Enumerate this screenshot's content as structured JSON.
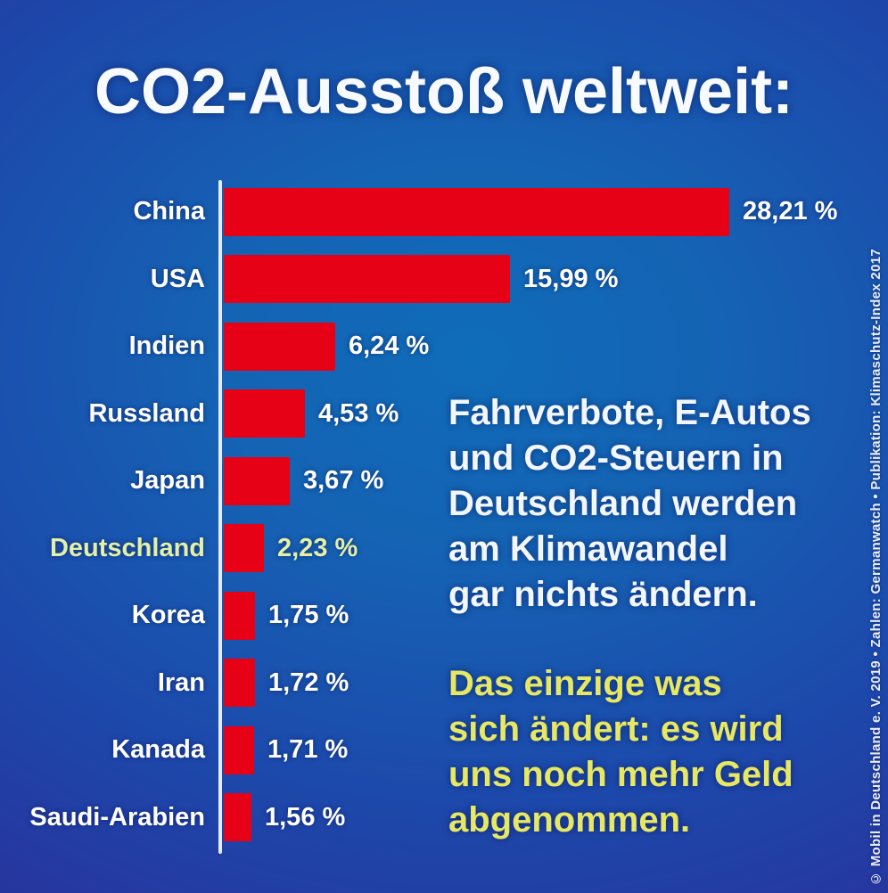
{
  "title": "CO2-Ausstoß weltweit:",
  "chart_data": {
    "type": "bar",
    "orientation": "horizontal",
    "title": "CO2-Ausstoß weltweit:",
    "categories": [
      "China",
      "USA",
      "Indien",
      "Russland",
      "Japan",
      "Deutschland",
      "Korea",
      "Iran",
      "Kanada",
      "Saudi-Arabien"
    ],
    "values": [
      28.21,
      15.99,
      6.24,
      4.53,
      3.67,
      2.23,
      1.75,
      1.72,
      1.71,
      1.56
    ],
    "value_labels": [
      "28,21 %",
      "15,99 %",
      "6,24 %",
      "4,53 %",
      "3,67 %",
      "2,23 %",
      "1,75 %",
      "1,72 %",
      "1,71 %",
      "1,56 %"
    ],
    "unit": "%",
    "xlim": [
      0,
      28.21
    ],
    "grid": false,
    "legend": false,
    "highlight_category": "Deutschland",
    "bar_color": "#e60117",
    "label_color": "#ffffff",
    "highlight_color": "#e3f0a6",
    "axis_color": "#e4ecf8"
  },
  "annotations": {
    "white_note": "Fahrverbote, E-Autos\nund CO2-Steuern in\nDeutschland werden\nam Klimawandel\ngar nichts ändern.",
    "yellow_note": "Das einzige was\nsich ändert: es wird\nuns noch mehr Geld\nabgenommen.",
    "yellow_color": "#e6e863"
  },
  "credit": "© Mobil in Deutschland e. V. 2019  •  Zahlen: Germanwatch  •  Publikation: Klimaschutz-Index 2017",
  "colors": {
    "background_center": "#0f6cb8",
    "background_edge": "#2c2f8e"
  }
}
